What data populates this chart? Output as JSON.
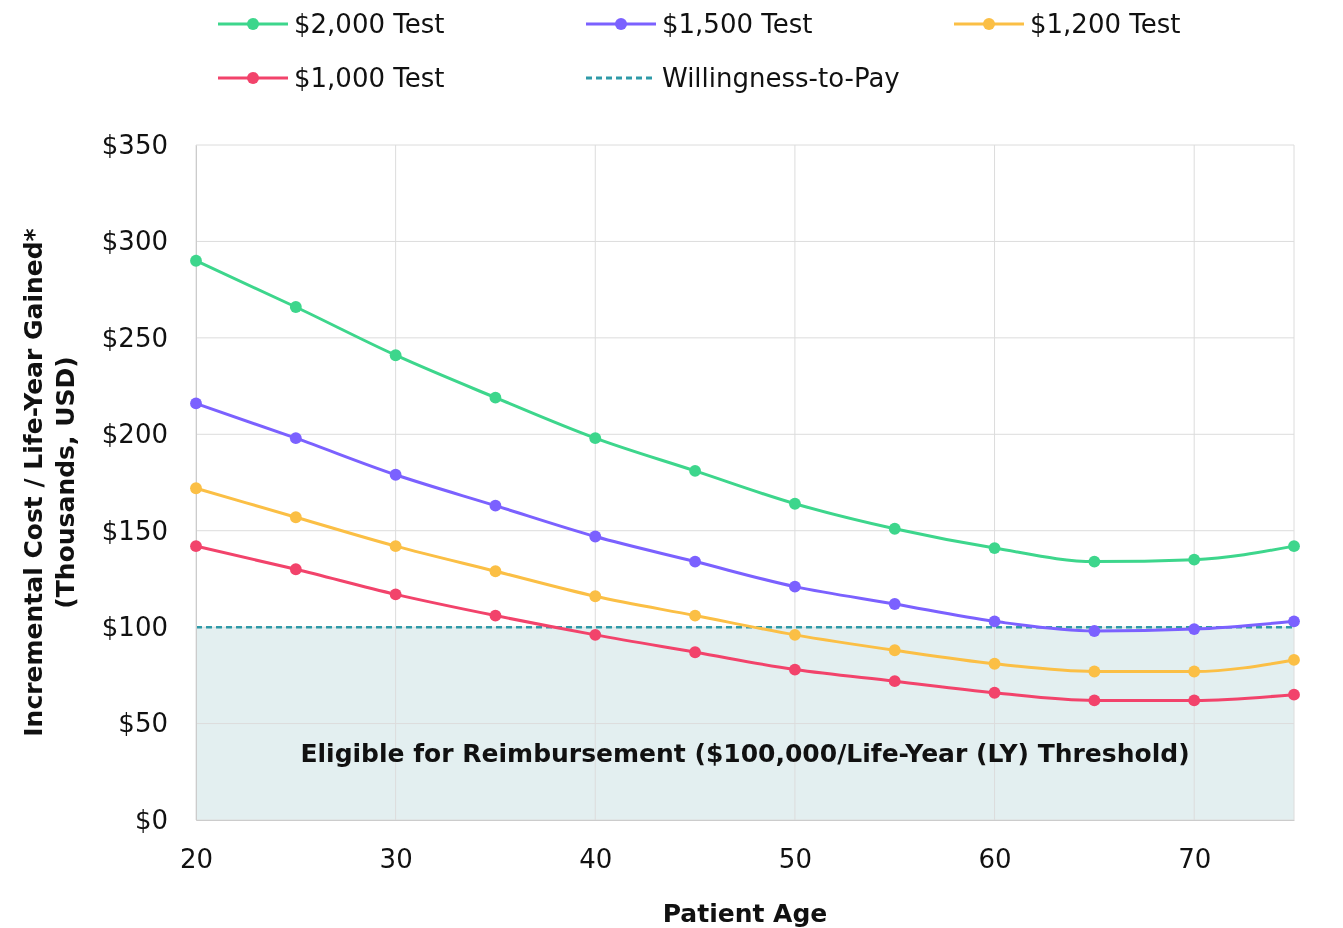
{
  "chart_data": {
    "type": "line",
    "xlabel": "Patient Age",
    "ylabel": "Incremental Cost / Life-Year Gained*\n(Thousands, USD)",
    "x": [
      20,
      25,
      30,
      35,
      40,
      45,
      50,
      55,
      60,
      65,
      70,
      75
    ],
    "series": [
      {
        "name": "$2,000 Test",
        "color": "#3dd68c",
        "values": [
          290,
          266,
          241,
          219,
          198,
          181,
          164,
          151,
          141,
          134,
          135,
          142
        ]
      },
      {
        "name": "$1,500 Test",
        "color": "#7b61ff",
        "values": [
          216,
          198,
          179,
          163,
          147,
          134,
          121,
          112,
          103,
          98,
          99,
          103
        ]
      },
      {
        "name": "$1,200 Test",
        "color": "#fbbf45",
        "values": [
          172,
          157,
          142,
          129,
          116,
          106,
          96,
          88,
          81,
          77,
          77,
          83
        ]
      },
      {
        "name": "$1,000 Test",
        "color": "#f2436b",
        "values": [
          142,
          130,
          117,
          106,
          96,
          87,
          78,
          72,
          66,
          62,
          62,
          65
        ]
      }
    ],
    "xlim": [
      20,
      75
    ],
    "xticks": [
      20,
      30,
      40,
      50,
      60,
      70
    ],
    "ylim": [
      0,
      350
    ],
    "yticks": [
      {
        "value": 0,
        "label": "$0"
      },
      {
        "value": 50,
        "label": "$50"
      },
      {
        "value": 100,
        "label": "$100"
      },
      {
        "value": 150,
        "label": "$150"
      },
      {
        "value": 200,
        "label": "$200"
      },
      {
        "value": 250,
        "label": "$250"
      },
      {
        "value": 300,
        "label": "$300"
      },
      {
        "value": 350,
        "label": "$350"
      }
    ],
    "ref_lines": [
      {
        "axis": "y",
        "value": 100,
        "label": "Willingness-to-Pay",
        "color": "#2e9aa8",
        "line_style": "dashed"
      }
    ],
    "bands": [
      {
        "axis": "y",
        "from": 0,
        "to": 100,
        "label": "Eligible for Reimbursement ($100,000/Life-Year (LY) Threshold)",
        "color": "#e3eff0"
      }
    ],
    "grid": true,
    "legend": "top",
    "marker": "circle",
    "line_style": "solid"
  }
}
